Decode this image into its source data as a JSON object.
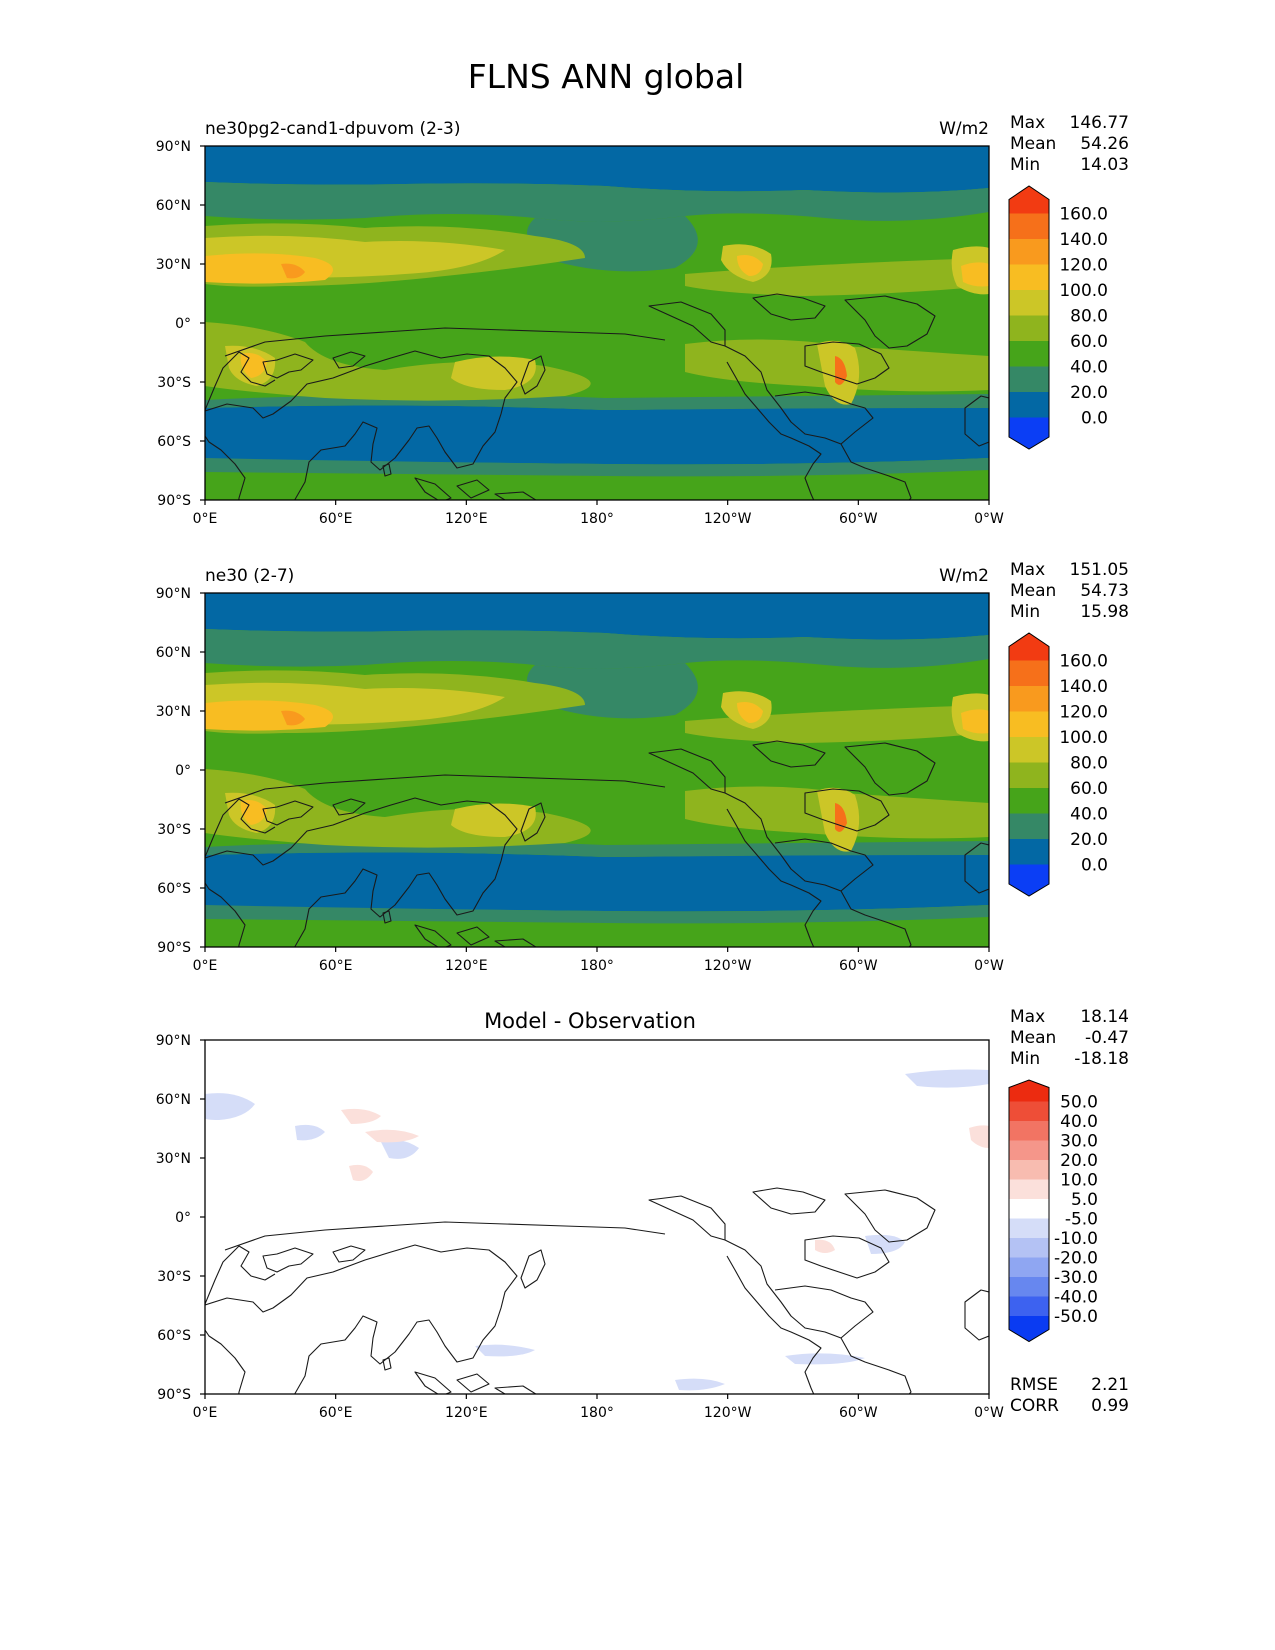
{
  "title": "FLNS ANN global",
  "colors": {
    "main_levels": [
      "#0b3ef5",
      "#0368a4",
      "#358866",
      "#46a41a",
      "#8fb41e",
      "#ccc627",
      "#f8bd22",
      "#f99a1e",
      "#f6701a",
      "#f23b12"
    ],
    "diff_levels": [
      "#0a3bf2",
      "#3d62f0",
      "#6787ef",
      "#8fa6f2",
      "#b4c2f4",
      "#d5ddf8",
      "#ffffff",
      "#fbe0db",
      "#f8bcb0",
      "#f5968a",
      "#f27463",
      "#ee4e37",
      "#ec2b10"
    ]
  },
  "panels": [
    {
      "id": "test",
      "left_label": "ne30pg2-cand1-dpuvom (2-3)",
      "units": "W/m2",
      "stats": [
        {
          "label": "Max",
          "value": "146.77"
        },
        {
          "label": "Mean",
          "value": "54.26"
        },
        {
          "label": "Min",
          "value": "14.03"
        }
      ],
      "colorbar_ticks": [
        "160.0",
        "140.0",
        "120.0",
        "100.0",
        "80.0",
        "60.0",
        "40.0",
        "20.0",
        "0.0"
      ]
    },
    {
      "id": "ref",
      "left_label": "ne30 (2-7)",
      "units": "W/m2",
      "stats": [
        {
          "label": "Max",
          "value": "151.05"
        },
        {
          "label": "Mean",
          "value": "54.73"
        },
        {
          "label": "Min",
          "value": "15.98"
        }
      ],
      "colorbar_ticks": [
        "160.0",
        "140.0",
        "120.0",
        "100.0",
        "80.0",
        "60.0",
        "40.0",
        "20.0",
        "0.0"
      ]
    },
    {
      "id": "diff",
      "center_title": "Model - Observation",
      "stats": [
        {
          "label": "Max",
          "value": "18.14"
        },
        {
          "label": "Mean",
          "value": "-0.47"
        },
        {
          "label": "Min",
          "value": "-18.18"
        }
      ],
      "colorbar_ticks": [
        "50.0",
        "40.0",
        "30.0",
        "20.0",
        "10.0",
        "5.0",
        "-5.0",
        "-10.0",
        "-20.0",
        "-30.0",
        "-40.0",
        "-50.0"
      ],
      "metrics": [
        {
          "label": "RMSE",
          "value": "2.21"
        },
        {
          "label": "CORR",
          "value": "0.99"
        }
      ]
    }
  ],
  "axes": {
    "lat_ticks": [
      "90°N",
      "60°N",
      "30°N",
      "0°",
      "30°S",
      "60°S",
      "90°S"
    ],
    "lon_ticks": [
      "0°E",
      "60°E",
      "120°E",
      "180°",
      "120°W",
      "60°W",
      "0°W"
    ]
  }
}
